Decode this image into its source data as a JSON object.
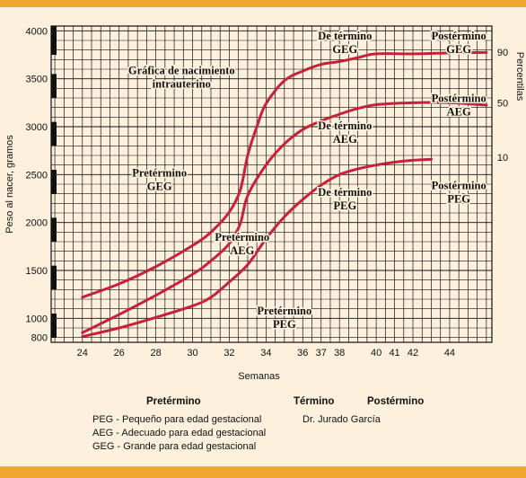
{
  "chart_data": {
    "type": "line",
    "title": "Gráfica de nacimiento intrauterino",
    "xlabel": "Semanas",
    "ylabel": "Peso al nacer, gramos",
    "y2label": "Percentilas",
    "xlim": [
      22.3,
      46.3
    ],
    "ylim": [
      750,
      4050
    ],
    "xticks": [
      24,
      26,
      28,
      30,
      32,
      34,
      36,
      37,
      38,
      40,
      41,
      42,
      44
    ],
    "yticks": [
      800,
      1000,
      1500,
      2000,
      2500,
      3000,
      3500,
      4000
    ],
    "y2ticks": [
      {
        "label": "90",
        "y": 3780
      },
      {
        "label": "50",
        "y": 3250
      },
      {
        "label": "10",
        "y": 2680
      }
    ],
    "grid": true,
    "series": [
      {
        "name": "90",
        "x": [
          24,
          26,
          28,
          30,
          31,
          32,
          32.6,
          33,
          33.5,
          34,
          35,
          36,
          37,
          38,
          39,
          40,
          42,
          44,
          46
        ],
        "values": [
          1220,
          1360,
          1540,
          1760,
          1900,
          2110,
          2340,
          2700,
          3000,
          3240,
          3480,
          3580,
          3650,
          3680,
          3720,
          3760,
          3760,
          3770,
          3775
        ]
      },
      {
        "name": "50",
        "x": [
          24,
          26,
          28,
          30,
          31,
          32,
          32.6,
          33,
          34,
          35,
          36,
          37,
          38,
          39,
          40,
          42,
          44,
          46
        ],
        "values": [
          850,
          1040,
          1240,
          1460,
          1600,
          1780,
          1990,
          2280,
          2600,
          2820,
          2970,
          3060,
          3130,
          3190,
          3230,
          3250,
          3250,
          3225
        ]
      },
      {
        "name": "10",
        "x": [
          24,
          26,
          28,
          30,
          31,
          32,
          33,
          34,
          35,
          36,
          37,
          38,
          39,
          40,
          41,
          42,
          43
        ],
        "values": [
          810,
          900,
          1010,
          1130,
          1220,
          1380,
          1560,
          1830,
          2060,
          2240,
          2390,
          2500,
          2560,
          2600,
          2630,
          2650,
          2660
        ]
      }
    ],
    "annotations": [
      {
        "lines": [
          "De término",
          "GEG"
        ],
        "x": 38.3,
        "y": 3910
      },
      {
        "lines": [
          "Postérmino",
          "GEG"
        ],
        "x": 44.5,
        "y": 3910
      },
      {
        "lines": [
          "Gráfica de nacimiento",
          "intrauterino"
        ],
        "x": 29.4,
        "y": 3550
      },
      {
        "lines": [
          "Postérmino",
          "AEG"
        ],
        "x": 44.5,
        "y": 3260
      },
      {
        "lines": [
          "De término",
          "AEG"
        ],
        "x": 38.3,
        "y": 2970
      },
      {
        "lines": [
          "Pretérmino",
          "GEG"
        ],
        "x": 28.2,
        "y": 2480
      },
      {
        "lines": [
          "De término",
          "PEG"
        ],
        "x": 38.3,
        "y": 2280
      },
      {
        "lines": [
          "Postérmino",
          "PEG"
        ],
        "x": 44.5,
        "y": 2350
      },
      {
        "lines": [
          "Pretérmino",
          "AEG"
        ],
        "x": 32.7,
        "y": 1810
      },
      {
        "lines": [
          "Pretérmino",
          "PEG"
        ],
        "x": 35.0,
        "y": 1040
      }
    ]
  },
  "legend": {
    "periods": [
      "Pretérmino",
      "Término",
      "Postérmino"
    ],
    "definitions": [
      "PEG - Pequeño para edad gestacional",
      "AEG - Adecuado para edad gestacional",
      "GEG - Grande para edad gestacional"
    ],
    "author": "Dr. Jurado García"
  },
  "colors": {
    "curve": "#c8203a",
    "grid": "#111111",
    "background": "#fdf1dd",
    "bar": "#f0a830"
  }
}
